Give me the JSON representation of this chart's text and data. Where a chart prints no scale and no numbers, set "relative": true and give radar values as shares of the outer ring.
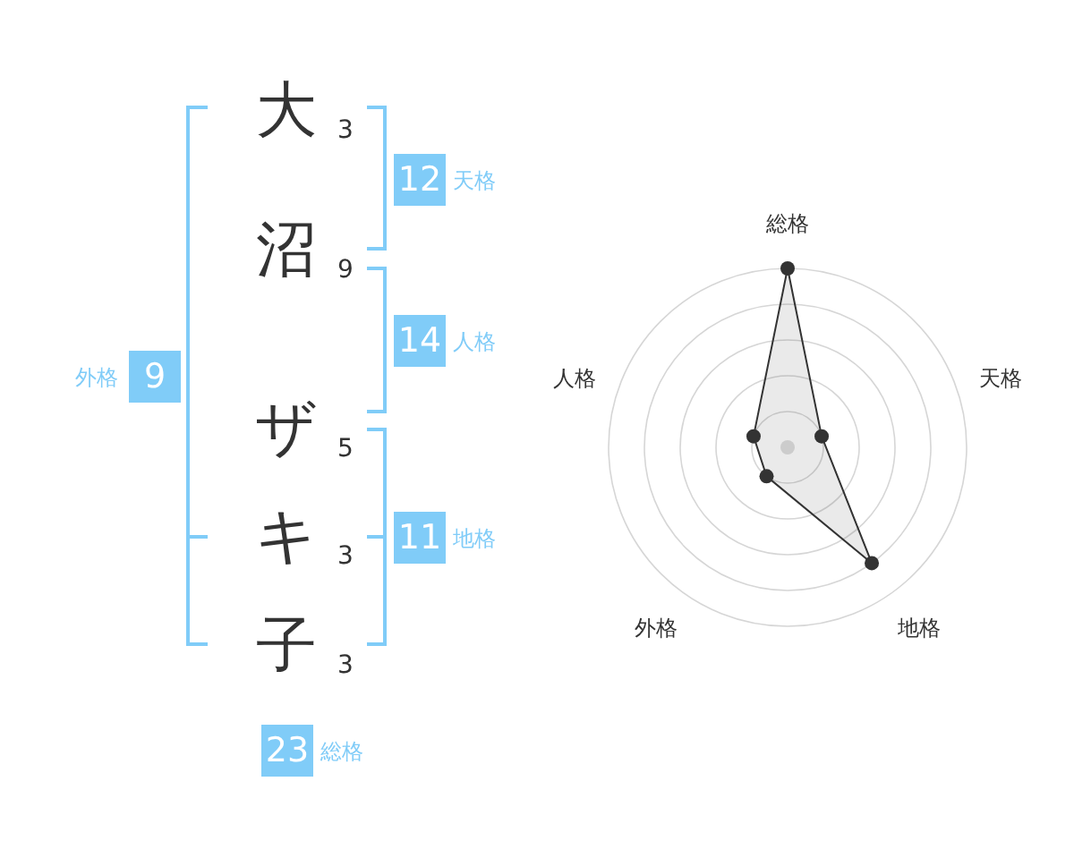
{
  "chart_data": [
    {
      "type": "other",
      "categories": [
        "大",
        "沼",
        "ザ",
        "キ",
        "子"
      ],
      "values": [
        3,
        9,
        5,
        3,
        3
      ],
      "data_labels": true,
      "color": "#80ccf8",
      "annotations": [
        "12",
        "天格",
        "14",
        "人格",
        "11",
        "地格",
        "9",
        "外格",
        "23",
        "総格"
      ]
    },
    {
      "type": "radar",
      "categories": [
        "総格",
        "天格",
        "地格",
        "外格",
        "人格"
      ],
      "relative": true,
      "grid": true,
      "marker": "circle",
      "series": [
        {
          "color": "#333333",
          "values": [
            1,
            0.2,
            0.8,
            0.2,
            0.2
          ]
        }
      ]
    }
  ]
}
